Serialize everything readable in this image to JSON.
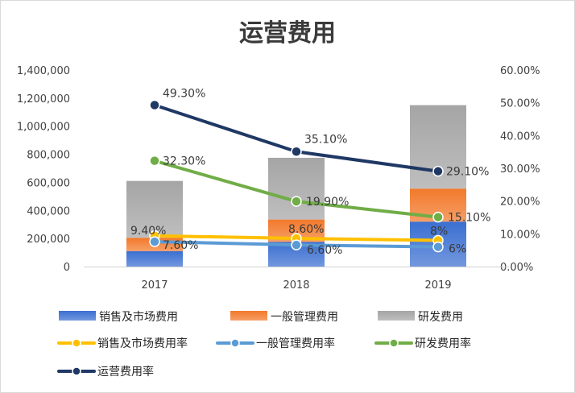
{
  "chart_data": {
    "type": "bar",
    "title": "运营费用",
    "categories": [
      "2017",
      "2018",
      "2019"
    ],
    "stacked_bars": [
      {
        "name": "销售及市场费用",
        "color": "#3b6fd1",
        "values": [
          110000,
          175000,
          320000
        ]
      },
      {
        "name": "一般管理费用",
        "color": "#f2792b",
        "values": [
          95000,
          160000,
          235000
        ]
      },
      {
        "name": "研发费用",
        "color": "#a5a5a5",
        "values": [
          405000,
          440000,
          595000
        ]
      }
    ],
    "lines": [
      {
        "name": "销售及市场费用率",
        "color": "#ffc000",
        "values": [
          9.4,
          8.6,
          8.0
        ],
        "labels": [
          "9.40%",
          "8.60%",
          "8%"
        ]
      },
      {
        "name": "一般管理费用率",
        "color": "#5b9bd5",
        "values": [
          7.6,
          6.6,
          6.0
        ],
        "labels": [
          "7.60%",
          "6.60%",
          "6%"
        ]
      },
      {
        "name": "研发费用率",
        "color": "#70ad47",
        "values": [
          32.3,
          19.9,
          15.1
        ],
        "labels": [
          "32.30%",
          "19.90%",
          "15.10%"
        ]
      },
      {
        "name": "运营费用率",
        "color": "#1f3864",
        "values": [
          49.3,
          35.1,
          29.1
        ],
        "labels": [
          "49.30%",
          "35.10%",
          "29.10%"
        ]
      }
    ],
    "y_left": {
      "min": 0,
      "max": 1400000,
      "ticks": [
        "0",
        "200,000",
        "400,000",
        "600,000",
        "800,000",
        "1,000,000",
        "1,200,000",
        "1,400,000"
      ]
    },
    "y_right": {
      "min": 0,
      "max": 60,
      "ticks": [
        "0.00%",
        "10.00%",
        "20.00%",
        "30.00%",
        "40.00%",
        "50.00%",
        "60.00%"
      ]
    },
    "grid": false,
    "legend_position": "bottom"
  }
}
